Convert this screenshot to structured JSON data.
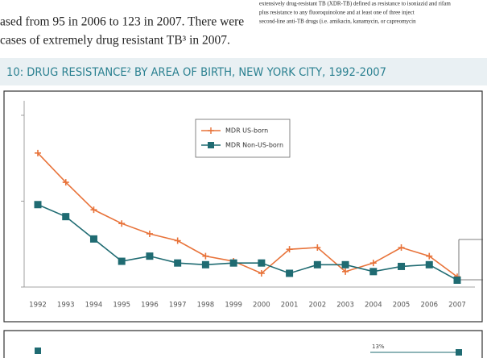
{
  "document": {
    "body_lines": [
      "ased from 95 in 2006 to 123 in 2007. There were",
      "cases of extremely drug resistant TB³ in 2007."
    ],
    "footnote_lines": [
      "extensively drug-resistant TB (XDR-TB) defined as resistance to isoniazid and rifam",
      "plus resistance to any fluoroquinolone and at least one of three inject",
      "second-line anti-TB drugs (i.e. amikacin, kanamycin, or capreomycin"
    ],
    "second_chart_label": "13%"
  },
  "chart_data": {
    "type": "line",
    "title": "10: DRUG RESISTANCE² BY AREA OF BIRTH, NEW YORK CITY, 1992-2007",
    "categories": [
      "1992",
      "1993",
      "1994",
      "1995",
      "1996",
      "1997",
      "1998",
      "1999",
      "2000",
      "2001",
      "2002",
      "2003",
      "2004",
      "2005",
      "2006",
      "2007"
    ],
    "ylim": [
      0,
      10
    ],
    "yticks": [
      0,
      5,
      10
    ],
    "series": [
      {
        "name": "MDR US-born",
        "color": "#e8733a",
        "marker": "plus",
        "values": [
          7.8,
          6.1,
          4.5,
          3.7,
          3.1,
          2.7,
          1.8,
          1.5,
          0.8,
          2.2,
          2.3,
          0.9,
          1.4,
          2.3,
          1.8,
          0.6
        ]
      },
      {
        "name": "MDR Non-US-born",
        "color": "#1f6b72",
        "marker": "square",
        "values": [
          4.8,
          4.1,
          2.8,
          1.5,
          1.8,
          1.4,
          1.3,
          1.4,
          1.4,
          0.8,
          1.3,
          1.3,
          0.9,
          1.2,
          1.3,
          0.4
        ]
      }
    ]
  }
}
